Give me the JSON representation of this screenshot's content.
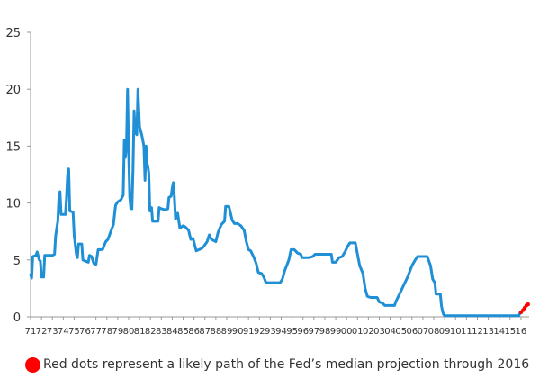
{
  "chart_data": {
    "type": "line",
    "title": "",
    "xlabel": "",
    "ylabel": "",
    "xlim": [
      1971.0,
      2016.75
    ],
    "ylim": [
      0,
      25
    ],
    "y_ticks": [
      0,
      5,
      10,
      15,
      20,
      25
    ],
    "x_tick_labels": [
      "71",
      "72",
      "73",
      "74",
      "75",
      "76",
      "77",
      "78",
      "79",
      "80",
      "81",
      "82",
      "83",
      "84",
      "85",
      "86",
      "87",
      "88",
      "89",
      "90",
      "91",
      "92",
      "93",
      "94",
      "95",
      "96",
      "97",
      "98",
      "99",
      "00",
      "01",
      "02",
      "03",
      "04",
      "05",
      "06",
      "07",
      "08",
      "09",
      "10",
      "11",
      "12",
      "13",
      "14",
      "15",
      "16"
    ],
    "grid": "none",
    "series": [
      {
        "color": "#1f8fd6",
        "style": "solid",
        "points": [
          [
            1971.0,
            3.7
          ],
          [
            1971.1,
            3.4
          ],
          [
            1971.2,
            5.3
          ],
          [
            1971.5,
            5.4
          ],
          [
            1971.6,
            5.7
          ],
          [
            1971.8,
            5.0
          ],
          [
            1971.9,
            4.9
          ],
          [
            1972.0,
            3.5
          ],
          [
            1972.2,
            3.5
          ],
          [
            1972.3,
            5.4
          ],
          [
            1972.7,
            5.4
          ],
          [
            1973.0,
            5.4
          ],
          [
            1973.2,
            5.5
          ],
          [
            1973.3,
            7.1
          ],
          [
            1973.5,
            8.4
          ],
          [
            1973.6,
            10.5
          ],
          [
            1973.7,
            11.0
          ],
          [
            1973.8,
            9.0
          ],
          [
            1974.2,
            9.0
          ],
          [
            1974.3,
            10.5
          ],
          [
            1974.4,
            12.5
          ],
          [
            1974.5,
            13.0
          ],
          [
            1974.6,
            9.3
          ],
          [
            1974.9,
            9.2
          ],
          [
            1975.0,
            7.2
          ],
          [
            1975.2,
            5.5
          ],
          [
            1975.3,
            5.2
          ],
          [
            1975.4,
            6.4
          ],
          [
            1975.7,
            6.4
          ],
          [
            1975.8,
            5.0
          ],
          [
            1976.0,
            4.9
          ],
          [
            1976.3,
            4.8
          ],
          [
            1976.4,
            5.4
          ],
          [
            1976.6,
            5.3
          ],
          [
            1976.8,
            4.7
          ],
          [
            1977.0,
            4.6
          ],
          [
            1977.2,
            5.9
          ],
          [
            1977.6,
            5.9
          ],
          [
            1977.9,
            6.6
          ],
          [
            1978.1,
            6.8
          ],
          [
            1978.4,
            7.6
          ],
          [
            1978.6,
            8.1
          ],
          [
            1978.8,
            9.8
          ],
          [
            1979.0,
            10.1
          ],
          [
            1979.3,
            10.3
          ],
          [
            1979.5,
            10.7
          ],
          [
            1979.6,
            15.5
          ],
          [
            1979.7,
            14.0
          ],
          [
            1979.8,
            15.0
          ],
          [
            1979.9,
            20.0
          ],
          [
            1980.0,
            14.5
          ],
          [
            1980.1,
            10.5
          ],
          [
            1980.2,
            9.5
          ],
          [
            1980.3,
            9.5
          ],
          [
            1980.4,
            13.0
          ],
          [
            1980.5,
            18.1
          ],
          [
            1980.6,
            16.2
          ],
          [
            1980.75,
            16.0
          ],
          [
            1980.85,
            20.0
          ],
          [
            1981.0,
            16.7
          ],
          [
            1981.2,
            16.0
          ],
          [
            1981.4,
            15.0
          ],
          [
            1981.5,
            12.0
          ],
          [
            1981.6,
            15.0
          ],
          [
            1981.7,
            13.5
          ],
          [
            1981.8,
            13.0
          ],
          [
            1981.85,
            12.6
          ],
          [
            1981.95,
            9.3
          ],
          [
            1982.1,
            9.6
          ],
          [
            1982.2,
            8.4
          ],
          [
            1982.7,
            8.4
          ],
          [
            1982.8,
            9.6
          ],
          [
            1983.0,
            9.5
          ],
          [
            1983.4,
            9.4
          ],
          [
            1983.6,
            9.5
          ],
          [
            1983.7,
            10.5
          ],
          [
            1983.9,
            10.6
          ],
          [
            1984.0,
            11.3
          ],
          [
            1984.1,
            11.8
          ],
          [
            1984.2,
            10.5
          ],
          [
            1984.3,
            8.6
          ],
          [
            1984.5,
            9.1
          ],
          [
            1984.7,
            7.8
          ],
          [
            1985.0,
            8.0
          ],
          [
            1985.2,
            7.9
          ],
          [
            1985.5,
            7.6
          ],
          [
            1985.7,
            6.8
          ],
          [
            1985.9,
            6.9
          ],
          [
            1986.2,
            5.8
          ],
          [
            1986.7,
            6.0
          ],
          [
            1986.9,
            6.2
          ],
          [
            1987.2,
            6.6
          ],
          [
            1987.4,
            7.2
          ],
          [
            1987.6,
            6.8
          ],
          [
            1987.8,
            6.7
          ],
          [
            1988.0,
            6.6
          ],
          [
            1988.2,
            7.4
          ],
          [
            1988.5,
            8.1
          ],
          [
            1988.8,
            8.4
          ],
          [
            1988.9,
            9.7
          ],
          [
            1989.2,
            9.7
          ],
          [
            1989.5,
            8.5
          ],
          [
            1989.7,
            8.2
          ],
          [
            1990.0,
            8.2
          ],
          [
            1990.3,
            8.0
          ],
          [
            1990.6,
            7.6
          ],
          [
            1990.8,
            6.6
          ],
          [
            1991.0,
            5.9
          ],
          [
            1991.2,
            5.8
          ],
          [
            1991.5,
            5.2
          ],
          [
            1991.7,
            4.7
          ],
          [
            1991.9,
            3.9
          ],
          [
            1992.2,
            3.8
          ],
          [
            1992.4,
            3.5
          ],
          [
            1992.6,
            3.0
          ],
          [
            1993.0,
            3.0
          ],
          [
            1993.5,
            3.0
          ],
          [
            1993.9,
            3.0
          ],
          [
            1994.1,
            3.3
          ],
          [
            1994.3,
            4.0
          ],
          [
            1994.5,
            4.5
          ],
          [
            1994.7,
            5.0
          ],
          [
            1994.9,
            5.9
          ],
          [
            1995.2,
            5.9
          ],
          [
            1995.5,
            5.6
          ],
          [
            1995.8,
            5.5
          ],
          [
            1995.9,
            5.2
          ],
          [
            1996.5,
            5.2
          ],
          [
            1996.9,
            5.3
          ],
          [
            1997.1,
            5.5
          ],
          [
            1997.5,
            5.5
          ],
          [
            1998.0,
            5.5
          ],
          [
            1998.6,
            5.5
          ],
          [
            1998.7,
            4.8
          ],
          [
            1999.0,
            4.8
          ],
          [
            1999.3,
            5.2
          ],
          [
            1999.6,
            5.3
          ],
          [
            1999.9,
            5.8
          ],
          [
            2000.1,
            6.2
          ],
          [
            2000.3,
            6.5
          ],
          [
            2000.8,
            6.5
          ],
          [
            2001.0,
            5.5
          ],
          [
            2001.2,
            4.5
          ],
          [
            2001.5,
            3.8
          ],
          [
            2001.7,
            2.5
          ],
          [
            2001.9,
            1.8
          ],
          [
            2002.2,
            1.7
          ],
          [
            2002.5,
            1.7
          ],
          [
            2002.8,
            1.7
          ],
          [
            2003.0,
            1.3
          ],
          [
            2003.3,
            1.2
          ],
          [
            2003.5,
            1.0
          ],
          [
            2004.0,
            1.0
          ],
          [
            2004.4,
            1.0
          ],
          [
            2004.5,
            1.3
          ],
          [
            2004.8,
            1.9
          ],
          [
            2005.0,
            2.3
          ],
          [
            2005.3,
            2.9
          ],
          [
            2005.6,
            3.5
          ],
          [
            2005.8,
            4.0
          ],
          [
            2006.0,
            4.5
          ],
          [
            2006.3,
            5.0
          ],
          [
            2006.5,
            5.3
          ],
          [
            2006.7,
            5.3
          ],
          [
            2007.0,
            5.3
          ],
          [
            2007.4,
            5.3
          ],
          [
            2007.7,
            4.5
          ],
          [
            2007.9,
            3.3
          ],
          [
            2008.1,
            3.0
          ],
          [
            2008.2,
            2.0
          ],
          [
            2008.4,
            2.0
          ],
          [
            2008.6,
            2.0
          ],
          [
            2008.7,
            1.0
          ],
          [
            2008.8,
            0.5
          ],
          [
            2008.9,
            0.2
          ],
          [
            2009.0,
            0.1
          ],
          [
            2010.0,
            0.1
          ],
          [
            2011.0,
            0.1
          ],
          [
            2012.0,
            0.1
          ],
          [
            2013.0,
            0.1
          ],
          [
            2014.0,
            0.1
          ],
          [
            2015.0,
            0.1
          ],
          [
            2015.8,
            0.1
          ],
          [
            2015.95,
            0.4
          ]
        ]
      },
      {
        "color": "#ff0000",
        "style": "dots",
        "points": [
          [
            2016.0,
            0.4
          ],
          [
            2016.2,
            0.6
          ],
          [
            2016.35,
            0.8
          ],
          [
            2016.5,
            1.0
          ],
          [
            2016.65,
            1.1
          ]
        ]
      }
    ]
  },
  "legend": {
    "text": "Red dots represent a likely path of the Fed’s median projection through 2016",
    "dot_color": "#ff0000"
  }
}
